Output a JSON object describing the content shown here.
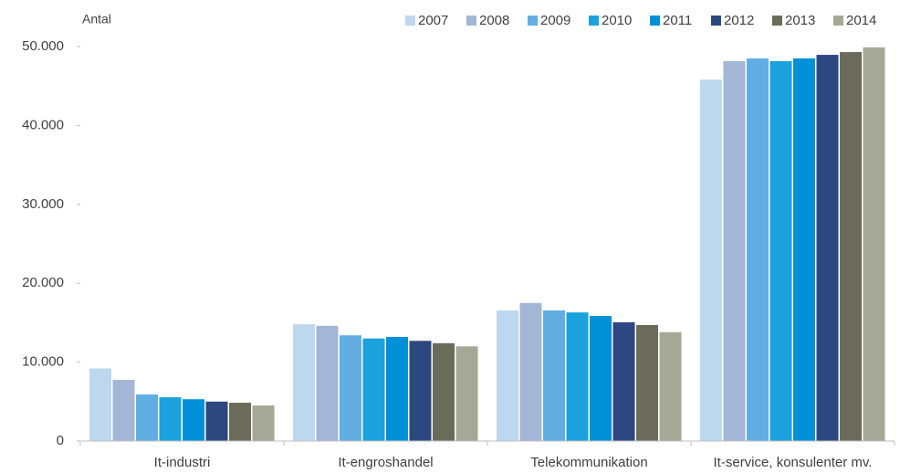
{
  "chart_data": {
    "type": "bar",
    "y_label": "Antal",
    "categories": [
      "It-industri",
      "It-engroshandel",
      "Telekommunikation",
      "It-service, konsulenter mv."
    ],
    "series": [
      {
        "name": "2007",
        "color": "#bdd7ee",
        "values": [
          9200,
          14800,
          16550,
          45800
        ]
      },
      {
        "name": "2008",
        "color": "#a3b6d6",
        "values": [
          7750,
          14600,
          17500,
          48150
        ]
      },
      {
        "name": "2009",
        "color": "#62aee3",
        "values": [
          5900,
          13400,
          16550,
          48500
        ]
      },
      {
        "name": "2010",
        "color": "#1ba1dc",
        "values": [
          5550,
          13000,
          16300,
          48150
        ]
      },
      {
        "name": "2011",
        "color": "#0090d8",
        "values": [
          5300,
          13200,
          15850,
          48500
        ]
      },
      {
        "name": "2012",
        "color": "#2d4780",
        "values": [
          5000,
          12700,
          15050,
          48950
        ]
      },
      {
        "name": "2013",
        "color": "#6b6b5a",
        "values": [
          4850,
          12400,
          14700,
          49300
        ]
      },
      {
        "name": "2014",
        "color": "#a6a896",
        "values": [
          4500,
          12000,
          13800,
          49900
        ]
      }
    ],
    "ylim": [
      0,
      50000
    ],
    "yticks": [
      0,
      {
        "value": 10000,
        "label": "10.000"
      },
      {
        "value": 20000,
        "label": "20.000"
      },
      {
        "value": 30000,
        "label": "30.000"
      },
      {
        "value": 40000,
        "label": "40.000"
      },
      {
        "value": 50000,
        "label": "50.000"
      }
    ],
    "legend": "top-right"
  }
}
